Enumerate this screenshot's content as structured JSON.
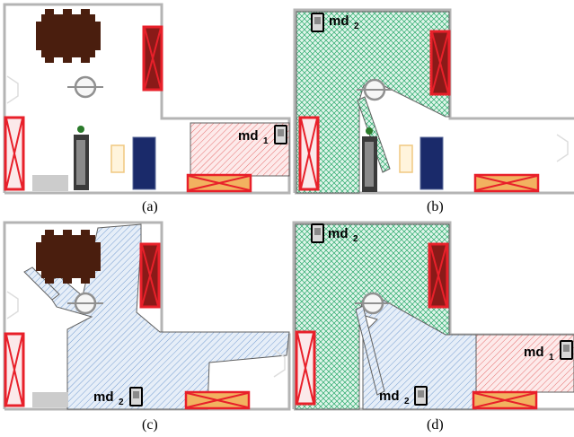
{
  "panels": {
    "a": {
      "caption": "(a)",
      "detectors": [
        {
          "label": "md",
          "sub": "1"
        }
      ]
    },
    "b": {
      "caption": "(b)",
      "detectors": [
        {
          "label": "md",
          "sub": "2"
        }
      ]
    },
    "c": {
      "caption": "(c)",
      "detectors": [
        {
          "label": "md",
          "sub": "2"
        }
      ]
    },
    "d": {
      "caption": "(d)",
      "detectors": [
        {
          "label": "md",
          "sub": "2"
        },
        {
          "label": "md",
          "sub": "1"
        },
        {
          "label": "md",
          "sub": "2"
        }
      ]
    }
  },
  "colors": {
    "wall": "#b4b4b4",
    "cabinet_stroke": "#e8202a",
    "cabinet_dark": "#8a1a18",
    "table": "#4a1e0e",
    "fridge": "#1a2a6a",
    "sofa": "#f2b260",
    "region_green": "#2aa86a",
    "region_blue": "#5a8ac8",
    "region_red": "#e05050",
    "region_outline": "#606060"
  },
  "icons": [
    "table-icon",
    "cabinet-icon",
    "lamp-icon",
    "fridge-icon",
    "sofa-icon",
    "plant-icon",
    "motion-detector-icon"
  ]
}
